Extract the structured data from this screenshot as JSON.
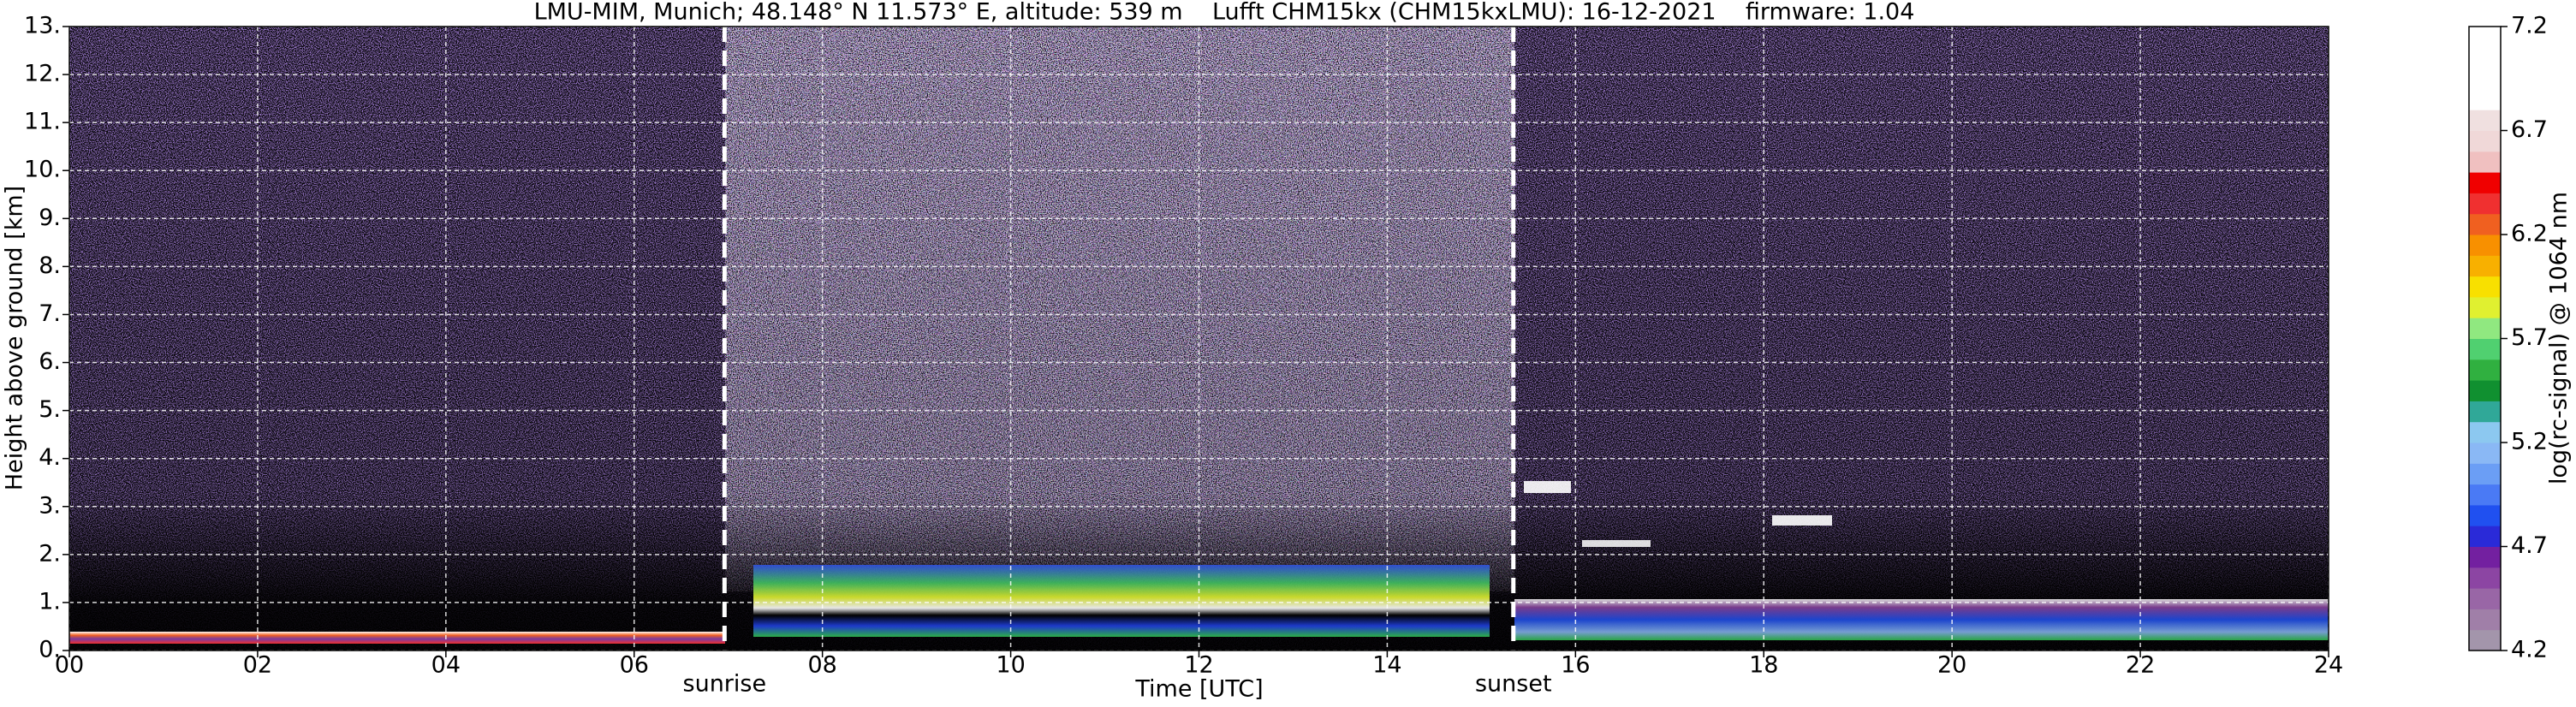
{
  "chart_data": {
    "type": "heatmap",
    "title": "LMU-MIM, Munich; 48.148° N 11.573° E, altitude: 539 m    Lufft CHM15kx (CHM15kxLMU): 16-12-2021    firmware: 1.04",
    "x_label": "Time [UTC]",
    "y_label": "Height above ground [km]",
    "xlim": [
      0,
      24
    ],
    "xticks": [
      {
        "value": 0,
        "label": "00"
      },
      {
        "value": 2,
        "label": "02"
      },
      {
        "value": 4,
        "label": "04"
      },
      {
        "value": 6,
        "label": "06"
      },
      {
        "value": 8,
        "label": "08"
      },
      10,
      12,
      14,
      16,
      18,
      20,
      22,
      24
    ],
    "ylim": [
      0,
      13
    ],
    "yticks": [
      {
        "value": 0,
        "label": "0."
      },
      {
        "value": 1,
        "label": "1."
      },
      {
        "value": 2,
        "label": "2."
      },
      {
        "value": 3,
        "label": "3."
      },
      {
        "value": 4,
        "label": "4."
      },
      {
        "value": 5,
        "label": "5."
      },
      {
        "value": 6,
        "label": "6."
      },
      {
        "value": 7,
        "label": "7."
      },
      {
        "value": 8,
        "label": "8."
      },
      {
        "value": 9,
        "label": "9."
      },
      {
        "value": 10,
        "label": "10."
      },
      {
        "value": 11,
        "label": "11."
      },
      {
        "value": 12,
        "label": "12."
      },
      {
        "value": 13,
        "label": "13."
      }
    ],
    "grid": true,
    "annotations": [
      {
        "text": "sunrise",
        "x": 6.96
      },
      {
        "text": "sunset",
        "x": 15.34
      }
    ],
    "colorbar": {
      "label": "log(rc-signal) @ 1064 nm",
      "clim": [
        4.2,
        7.2
      ],
      "ticks": [
        4.2,
        4.7,
        5.2,
        5.7,
        6.2,
        6.7,
        7.2
      ],
      "colors": [
        "#a395ab",
        "#a07fa8",
        "#9966a6",
        "#8c45a3",
        "#7320a0",
        "#2a2ad8",
        "#2050f0",
        "#4a7af5",
        "#6b9ef5",
        "#8ab8f5",
        "#8cc8f0",
        "#30a898",
        "#109030",
        "#30b040",
        "#50d070",
        "#90e880",
        "#e0f030",
        "#f8e000",
        "#f8b000",
        "#f89000",
        "#f06020",
        "#f03030",
        "#f00000",
        "#f0c0c0",
        "#f0d8d8",
        "#f0e0e0",
        "#ffffff",
        "#ffffff",
        "#ffffff",
        "#ffffff"
      ]
    }
  }
}
